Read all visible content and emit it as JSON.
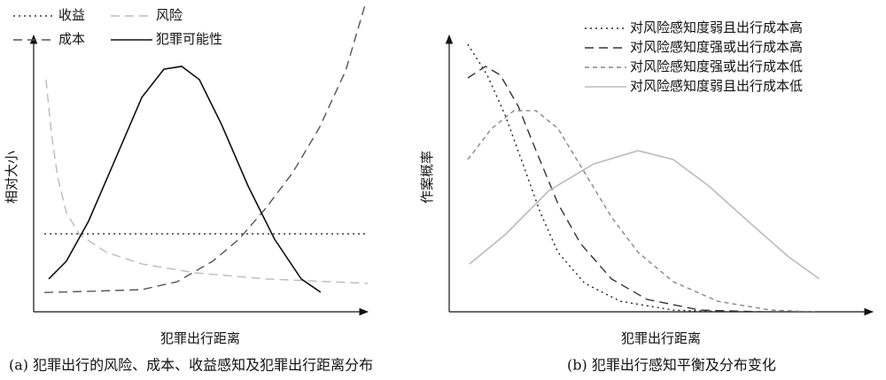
{
  "chart_data": [
    {
      "type": "line",
      "title": "(a) 犯罪出行的风险、成本、收益感知及犯罪出行距离分布",
      "x_label": "犯罪出行距离",
      "y_label": "相对大小",
      "xlim": [
        0,
        100
      ],
      "ylim": [
        0,
        100
      ],
      "series": [
        {
          "name": "收益",
          "color": "#333333",
          "dash": "dotted",
          "x": [
            3.2,
            100
          ],
          "values": [
            28.2,
            28.2
          ]
        },
        {
          "name": "成本",
          "color": "#555555",
          "dash": "dashed",
          "x": [
            3.2,
            16.4,
            32.4,
            43,
            53.6,
            61.5,
            69.5,
            77.5,
            85.4,
            93.4,
            99.2
          ],
          "values": [
            7,
            7.4,
            8,
            10.9,
            18.3,
            26.3,
            37.5,
            50.3,
            66.3,
            87.2,
            111
          ]
        },
        {
          "name": "风险",
          "color": "#bbbbbb",
          "dash": "dashed",
          "x": [
            3.7,
            5.3,
            7.2,
            9.8,
            13.8,
            21.8,
            32.4,
            48.3,
            69.5,
            100
          ],
          "values": [
            84,
            64.7,
            48.7,
            35.9,
            27.9,
            21.5,
            17.3,
            14.1,
            11.9,
            10.3
          ]
        },
        {
          "name": "犯罪可能性",
          "color": "#111111",
          "dash": "solid",
          "x": [
            4.5,
            9.8,
            16.4,
            24.4,
            32.4,
            39,
            44.3,
            49.6,
            56.2,
            64.2,
            72.1,
            80.1,
            85.9
          ],
          "values": [
            11.9,
            18.3,
            32.7,
            55.1,
            77.6,
            87.8,
            88.8,
            84,
            67.9,
            45.5,
            26.3,
            11.9,
            7.1
          ]
        }
      ]
    },
    {
      "type": "line",
      "title": "(b) 犯罪出行感知平衡及分布变化",
      "x_label": "犯罪出行距离",
      "y_label": "作案概率",
      "xlim": [
        0,
        100
      ],
      "ylim": [
        0,
        100
      ],
      "series": [
        {
          "name": "对风险感知度弱且出行成本高",
          "color": "#222222",
          "dash": "dotted",
          "x": [
            4.4,
            9,
            13.2,
            17.4,
            21.5,
            25.7,
            32,
            40.4,
            52.9,
            65.5
          ],
          "values": [
            96.8,
            85.6,
            71.2,
            53.5,
            35.9,
            21.5,
            10.3,
            3.8,
            0.6,
            0
          ]
        },
        {
          "name": "对风险感知度强或出行成本高",
          "color": "#333333",
          "dash": "dashed",
          "x": [
            4.4,
            8.6,
            12.1,
            16.3,
            20.5,
            25.7,
            31,
            38.3,
            46.7,
            59.2,
            73.8
          ],
          "values": [
            84.6,
            88.8,
            85.6,
            74.4,
            58.3,
            39.1,
            24.7,
            11.9,
            4.5,
            0.6,
            0
          ]
        },
        {
          "name": "对风险感知度强或出行成本低",
          "color": "#888888",
          "dash": "shortdash",
          "x": [
            4.4,
            10,
            15.3,
            20.5,
            25.7,
            32,
            38.3,
            44.6,
            52.9,
            63.4,
            75.9,
            86.4
          ],
          "values": [
            55.1,
            66.3,
            72.8,
            72.8,
            66.3,
            50.3,
            34.3,
            21.5,
            10.9,
            3.8,
            0.6,
            0
          ]
        },
        {
          "name": "对风险感知度弱且出行成本低",
          "color": "#bbbbbb",
          "dash": "solid",
          "x": [
            4.8,
            13.2,
            23.6,
            34.1,
            44.6,
            52.9,
            61.3,
            71.8,
            80.1,
            87.4
          ],
          "values": [
            17.3,
            27.9,
            43.9,
            53.5,
            58.3,
            55.1,
            45.5,
            31.1,
            19.9,
            11.9
          ]
        }
      ]
    }
  ]
}
